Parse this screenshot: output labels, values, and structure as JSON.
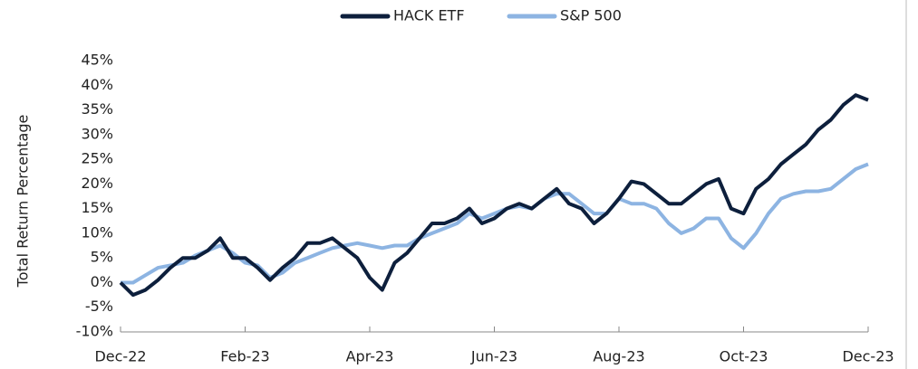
{
  "chart_data": {
    "type": "line",
    "y_label": "Total Return Percentage",
    "categories": [
      "Dec-22",
      null,
      null,
      null,
      null,
      null,
      null,
      null,
      null,
      null,
      "Feb-23",
      null,
      null,
      null,
      null,
      null,
      null,
      null,
      null,
      null,
      "Apr-23",
      null,
      null,
      null,
      null,
      null,
      null,
      null,
      null,
      null,
      "Jun-23",
      null,
      null,
      null,
      null,
      null,
      null,
      null,
      null,
      null,
      "Aug-23",
      null,
      null,
      null,
      null,
      null,
      null,
      null,
      null,
      null,
      "Oct-23",
      null,
      null,
      null,
      null,
      null,
      null,
      null,
      null,
      null,
      "Dec-23"
    ],
    "series": [
      {
        "name": "HACK ETF",
        "color": "#0d1f3c",
        "values": [
          0,
          -2.5,
          -1.5,
          0.5,
          3,
          5,
          5,
          6.5,
          9,
          5,
          5,
          3,
          0.5,
          3,
          5,
          8,
          8,
          9,
          7,
          5,
          1,
          -1.5,
          4,
          6,
          9,
          12,
          12,
          13,
          15,
          12,
          13,
          15,
          16,
          15,
          17,
          19,
          16,
          15,
          12,
          14,
          17,
          20.5,
          20,
          18,
          16,
          16,
          18,
          20,
          21,
          15,
          14,
          19,
          21,
          24,
          26,
          28,
          31,
          33,
          36,
          38,
          37
        ]
      },
      {
        "name": "S&P 500",
        "color": "#8db4e2",
        "values": [
          0,
          0,
          1.5,
          3,
          3.5,
          4,
          5.5,
          6.5,
          7.5,
          6,
          4,
          3.5,
          1,
          2,
          4,
          5,
          6,
          7,
          7.5,
          8,
          7.5,
          7,
          7.5,
          7.5,
          9,
          10,
          11,
          12,
          14,
          13,
          14,
          15,
          15.5,
          15,
          17,
          18,
          18,
          16,
          14,
          14,
          17,
          16,
          16,
          15,
          12,
          10,
          11,
          13,
          13,
          9,
          7,
          10,
          14,
          17,
          18,
          18.5,
          18.5,
          19,
          21,
          23,
          24
        ]
      }
    ],
    "ylim": [
      -10,
      45
    ],
    "yticks": [
      {
        "value": -10,
        "label": "-10%"
      },
      {
        "value": -5,
        "label": "-5%"
      },
      {
        "value": 0,
        "label": "0%"
      },
      {
        "value": 5,
        "label": "5%"
      },
      {
        "value": 10,
        "label": "10%"
      },
      {
        "value": 15,
        "label": "15%"
      },
      {
        "value": 20,
        "label": "20%"
      },
      {
        "value": 25,
        "label": "25%"
      },
      {
        "value": 30,
        "label": "30%"
      },
      {
        "value": 35,
        "label": "35%"
      },
      {
        "value": 40,
        "label": "40%"
      },
      {
        "value": 45,
        "label": "45%"
      }
    ],
    "legend": "top"
  }
}
